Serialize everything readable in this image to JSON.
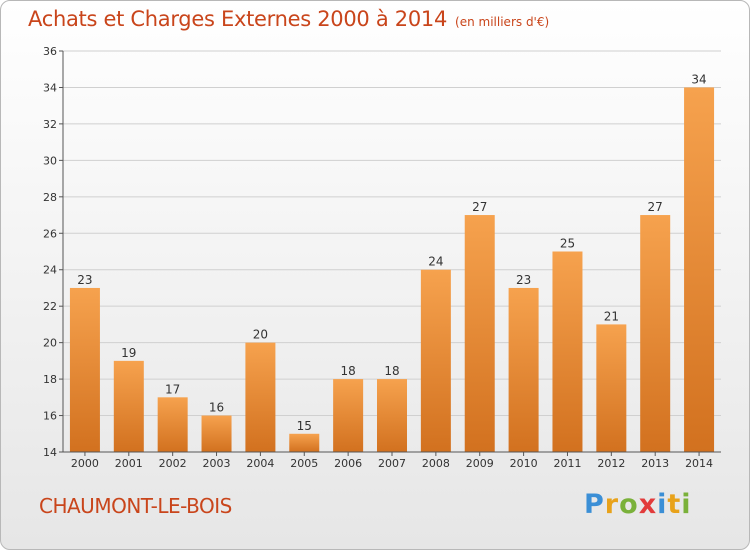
{
  "title": "Achats et Charges Externes 2000 à 2014",
  "subtitle": "(en milliers d'€)",
  "location": "CHAUMONT-LE-BOIS",
  "logo": "Proxiti",
  "colors": {
    "text_accent": "#c9451b",
    "bar_light": "#f6a24e",
    "bar_dark": "#d2711f",
    "grid": "#d0d0d0"
  },
  "chart_data": {
    "type": "bar",
    "categories": [
      "2000",
      "2001",
      "2002",
      "2003",
      "2004",
      "2005",
      "2006",
      "2007",
      "2008",
      "2009",
      "2010",
      "2011",
      "2012",
      "2013",
      "2014"
    ],
    "values": [
      23,
      19,
      17,
      16,
      20,
      15,
      18,
      18,
      24,
      27,
      23,
      25,
      21,
      27,
      34
    ],
    "ylim": [
      14,
      36
    ],
    "yticks": [
      14,
      16,
      18,
      20,
      22,
      24,
      26,
      28,
      30,
      32,
      34,
      36
    ],
    "grid": true
  }
}
